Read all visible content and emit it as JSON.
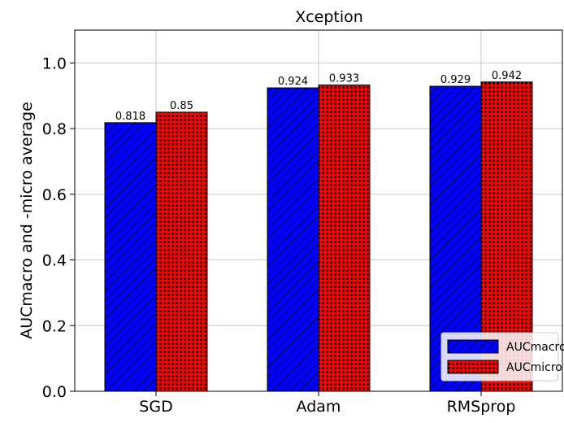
{
  "chart_data": {
    "type": "bar",
    "title": "Xception",
    "xlabel": "",
    "ylabel": "AUCmacro and -micro average",
    "categories": [
      "SGD",
      "Adam",
      "RMSprop"
    ],
    "series": [
      {
        "name": "AUCmacro",
        "values": [
          0.818,
          0.924,
          0.929
        ],
        "labels": [
          "0.818",
          "0.924",
          "0.929"
        ],
        "color": "#0000ff",
        "pattern": "diagonal-hatch"
      },
      {
        "name": "AUCmicro",
        "values": [
          0.85,
          0.933,
          0.942
        ],
        "labels": [
          "0.85",
          "0.933",
          "0.942"
        ],
        "color": "#ff0000",
        "pattern": "dots"
      }
    ],
    "ylim": [
      0,
      1.1
    ],
    "yticks": [
      0.0,
      0.2,
      0.4,
      0.6,
      0.8,
      1.0
    ],
    "ytick_labels": [
      "0.0",
      "0.2",
      "0.4",
      "0.6",
      "0.8",
      "1.0"
    ],
    "grid": true,
    "legend_position": "bottom-right"
  }
}
